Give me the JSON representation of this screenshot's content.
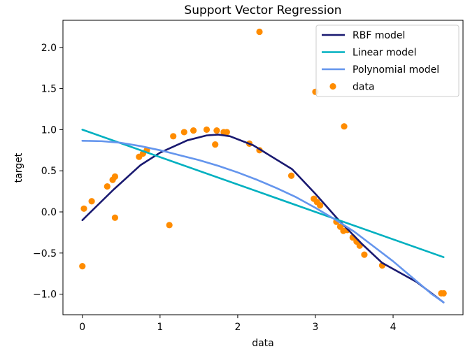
{
  "chart_data": {
    "type": "scatter",
    "title": "Support Vector Regression",
    "xlabel": "data",
    "ylabel": "target",
    "xlim": [
      -0.25,
      4.9
    ],
    "ylim": [
      -1.25,
      2.33
    ],
    "xticks": [
      0,
      1,
      2,
      3,
      4
    ],
    "yticks": [
      -1.0,
      -0.5,
      0.0,
      0.5,
      1.0,
      1.5,
      2.0
    ],
    "xtick_labels": [
      "0",
      "1",
      "2",
      "3",
      "4"
    ],
    "ytick_labels": [
      "−1.0",
      "−0.5",
      "0.0",
      "0.5",
      "1.0",
      "1.5",
      "2.0"
    ],
    "grid": false,
    "legend_position": "top-right",
    "series": [
      {
        "name": "RBF model",
        "kind": "line",
        "color": "#191970",
        "x": [
          0.0,
          0.4,
          0.75,
          1.0,
          1.35,
          1.6,
          1.75,
          1.9,
          2.2,
          2.7,
          3.0,
          3.3,
          3.6,
          3.86,
          4.3,
          4.65
        ],
        "y": [
          -0.1,
          0.27,
          0.57,
          0.72,
          0.87,
          0.93,
          0.94,
          0.92,
          0.81,
          0.52,
          0.22,
          -0.1,
          -0.39,
          -0.62,
          -0.85,
          -1.1
        ]
      },
      {
        "name": "Linear model",
        "kind": "line",
        "color": "#00b0c0",
        "x": [
          0.0,
          4.65
        ],
        "y": [
          1.0,
          -0.55
        ]
      },
      {
        "name": "Polynomial model",
        "kind": "line",
        "color": "#6495ed",
        "x": [
          0.0,
          0.25,
          0.5,
          0.75,
          1.0,
          1.25,
          1.5,
          1.75,
          2.0,
          2.25,
          2.5,
          2.75,
          3.0,
          3.25,
          3.5,
          3.75,
          4.0,
          4.25,
          4.5,
          4.65
        ],
        "y": [
          0.865,
          0.86,
          0.84,
          0.8,
          0.75,
          0.69,
          0.63,
          0.56,
          0.48,
          0.39,
          0.29,
          0.18,
          0.05,
          -0.09,
          -0.24,
          -0.42,
          -0.6,
          -0.8,
          -1.0,
          -1.1
        ]
      },
      {
        "name": "data",
        "kind": "scatter",
        "color": "#ff8c00",
        "x": [
          0.0,
          0.02,
          0.12,
          0.32,
          0.39,
          0.42,
          0.42,
          0.73,
          0.78,
          0.83,
          1.12,
          1.17,
          1.31,
          1.43,
          1.6,
          1.71,
          1.73,
          1.82,
          1.86,
          2.15,
          2.28,
          2.28,
          2.69,
          2.98,
          3.0,
          3.02,
          3.06,
          3.27,
          3.32,
          3.36,
          3.41,
          3.48,
          3.53,
          3.57,
          3.63,
          3.86,
          3.37,
          4.62,
          4.65
        ],
        "y": [
          -0.66,
          0.04,
          0.13,
          0.31,
          0.39,
          0.43,
          -0.07,
          0.67,
          0.71,
          0.75,
          -0.16,
          0.92,
          0.97,
          0.99,
          1.0,
          0.82,
          0.99,
          0.97,
          0.97,
          0.83,
          0.75,
          2.19,
          0.44,
          0.16,
          1.46,
          0.12,
          0.08,
          -0.12,
          -0.18,
          -0.23,
          -0.22,
          -0.31,
          -0.36,
          -0.41,
          -0.52,
          -0.65,
          1.04,
          -0.99,
          -0.99
        ]
      }
    ]
  }
}
